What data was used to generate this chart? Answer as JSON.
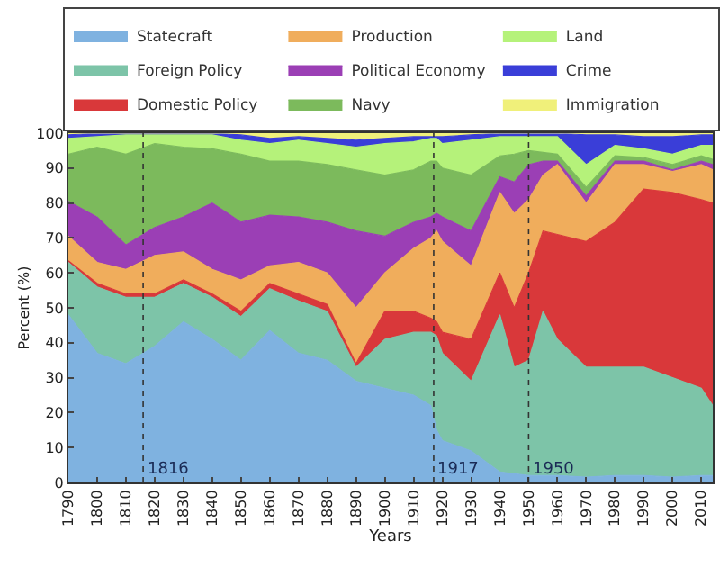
{
  "chart_data": {
    "type": "area",
    "stacked": true,
    "xlabel": "Years",
    "ylabel": "Percent (%)",
    "x": [
      1790,
      1800,
      1810,
      1820,
      1830,
      1840,
      1850,
      1860,
      1870,
      1880,
      1890,
      1900,
      1910,
      1916,
      1918,
      1920,
      1930,
      1940,
      1945,
      1950,
      1955,
      1960,
      1970,
      1980,
      1990,
      2000,
      2010,
      2014
    ],
    "xlim": [
      1790,
      2014
    ],
    "xticks": [
      1790,
      1800,
      1810,
      1820,
      1830,
      1840,
      1850,
      1860,
      1870,
      1880,
      1890,
      1900,
      1910,
      1920,
      1930,
      1940,
      1950,
      1960,
      1970,
      1980,
      1990,
      2000,
      2010
    ],
    "ylim": [
      0,
      100
    ],
    "yticks": [
      0,
      10,
      20,
      30,
      40,
      50,
      60,
      70,
      80,
      90,
      100
    ],
    "legend": "top",
    "series": [
      {
        "name": "Statecraft",
        "color": "#7fb2e0",
        "values": [
          48,
          37,
          34,
          39,
          46,
          41,
          35,
          43.5,
          37,
          35,
          29,
          27,
          25,
          22,
          15,
          12,
          9,
          3,
          2.5,
          2,
          2,
          2,
          1.5,
          2,
          2,
          1.5,
          2,
          2
        ]
      },
      {
        "name": "Foreign Policy",
        "color": "#7dc4a8",
        "values": [
          15,
          19,
          19,
          14,
          11,
          12,
          12.5,
          12,
          15,
          14,
          4,
          14,
          18,
          21,
          27,
          25,
          20,
          45,
          30.5,
          33,
          47,
          39,
          31.5,
          31,
          31,
          28.5,
          25,
          20
        ]
      },
      {
        "name": "Domestic Policy",
        "color": "#d9383a",
        "values": [
          0.5,
          1,
          1,
          1,
          1,
          1,
          1.5,
          1.5,
          2,
          2,
          1,
          8,
          6,
          4,
          4,
          6,
          12,
          12,
          17,
          25,
          23,
          30,
          36,
          41.5,
          51,
          53,
          54,
          58
        ]
      },
      {
        "name": "Production",
        "color": "#f0ad5c",
        "values": [
          7,
          6,
          7,
          11,
          8,
          7,
          9,
          5,
          9,
          9,
          16,
          11,
          18,
          23,
          26,
          26,
          21,
          23,
          27,
          21,
          16,
          20,
          11,
          16.5,
          7,
          6,
          10,
          9.5
        ]
      },
      {
        "name": "Political Economy",
        "color": "#9b3fb5",
        "values": [
          10,
          13,
          7,
          8,
          10,
          19,
          16.5,
          14.5,
          13,
          14.5,
          22,
          10.5,
          7.5,
          6,
          5,
          7,
          10,
          4.5,
          9,
          10,
          4,
          1,
          2,
          1,
          1,
          0.5,
          1,
          1.5
        ]
      },
      {
        "name": "Navy",
        "color": "#7cba5c",
        "values": [
          13.5,
          20,
          26,
          24,
          20,
          15.5,
          19.5,
          15.5,
          16,
          16.5,
          17.5,
          17.5,
          15,
          16,
          15,
          14,
          16,
          6,
          8,
          4,
          2.5,
          2,
          2.5,
          1.5,
          1,
          1.5,
          1.5,
          1.5
        ]
      },
      {
        "name": "Land",
        "color": "#b5f27a",
        "values": [
          4.5,
          3,
          5.5,
          2.5,
          3.5,
          4,
          4,
          5,
          6,
          6,
          6.5,
          9,
          8,
          6.5,
          6.5,
          7,
          10,
          5.5,
          5,
          4,
          4.5,
          5,
          6.5,
          3,
          2.5,
          3,
          3,
          4
        ]
      },
      {
        "name": "Crime",
        "color": "#3a3ed8",
        "values": [
          1,
          1,
          0.5,
          0.5,
          0.5,
          0.5,
          1.5,
          1.5,
          1,
          1.5,
          2,
          1.5,
          1.5,
          0.5,
          0.5,
          2,
          1.5,
          1,
          1,
          1,
          1,
          1,
          8.5,
          3,
          3.5,
          5,
          3,
          3
        ]
      },
      {
        "name": "Immigration",
        "color": "#f0f07a",
        "values": [
          0.5,
          0,
          0,
          0,
          0,
          0,
          0.5,
          1.5,
          1,
          1.5,
          2,
          1.5,
          1,
          1,
          1,
          1,
          0.5,
          0,
          0,
          0,
          0,
          0,
          0.5,
          0.5,
          1,
          1,
          0.5,
          0.5
        ]
      }
    ],
    "ref_lines": [
      {
        "axis": "x",
        "value": 1816,
        "label": "1816"
      },
      {
        "axis": "x",
        "value": 1917,
        "label": "1917"
      },
      {
        "axis": "x",
        "value": 1950,
        "label": "1950"
      }
    ]
  }
}
